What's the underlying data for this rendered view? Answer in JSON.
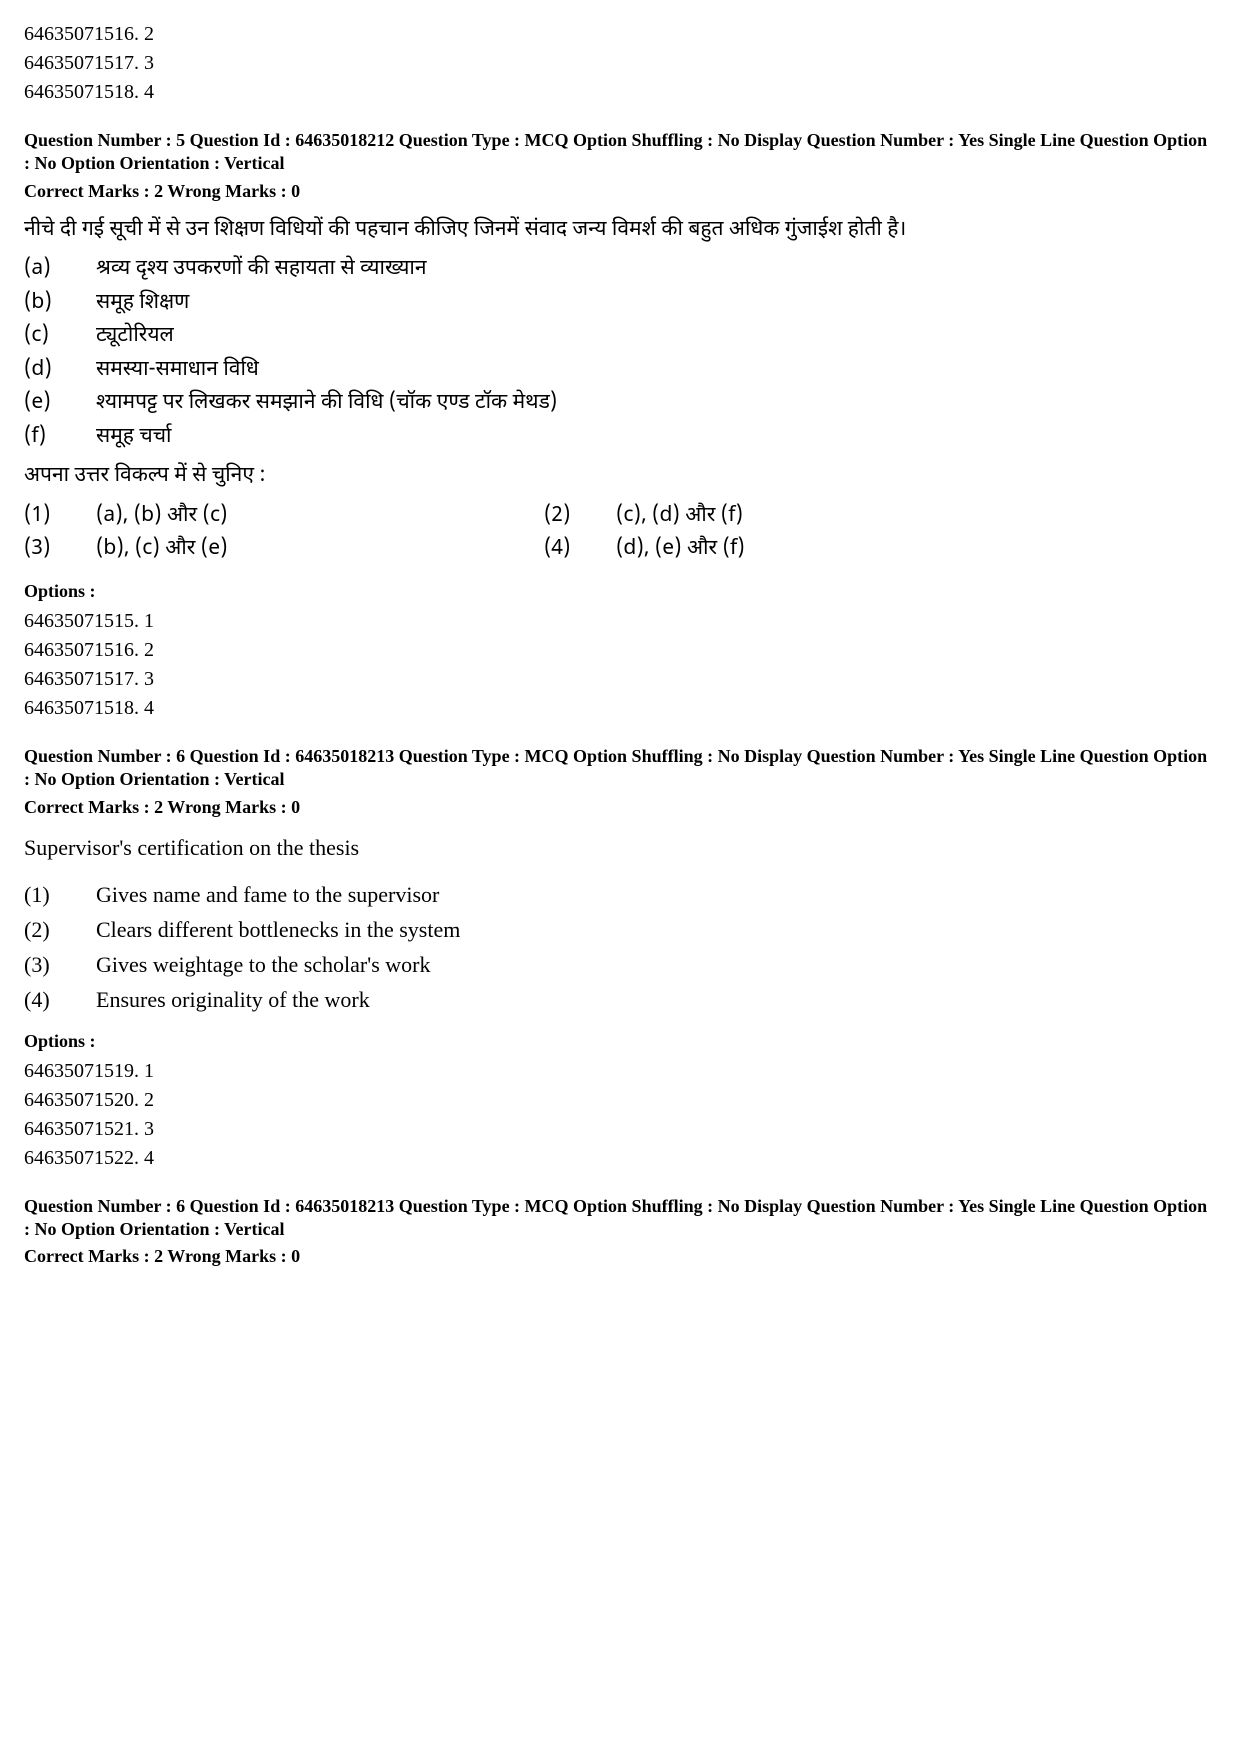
{
  "prev_options": [
    "64635071516. 2",
    "64635071517. 3",
    "64635071518. 4"
  ],
  "q5": {
    "meta": "Question Number : 5  Question Id : 64635018212  Question Type : MCQ  Option Shuffling : No  Display Question Number : Yes  Single Line Question Option : No  Option Orientation : Vertical",
    "marks": "Correct Marks : 2  Wrong Marks : 0",
    "text": "नीचे दी गई सूची में से उन शिक्षण विधियों की पहचान कीजिए जिनमें संवाद जन्य विमर्श की बहुत अधिक गुंजाईश होती है।",
    "items": [
      {
        "label": "(a)",
        "text": "श्रव्य दृश्य उपकरणों की सहायता से व्याख्यान"
      },
      {
        "label": "(b)",
        "text": "समूह शिक्षण"
      },
      {
        "label": "(c)",
        "text": "ट्यूटोरियल"
      },
      {
        "label": "(d)",
        "text": "समस्या-समाधान विधि"
      },
      {
        "label": "(e)",
        "text": "श्यामपट्ट पर लिखकर समझाने की विधि (चॉक एण्ड टॉक मेथड)"
      },
      {
        "label": "(f)",
        "text": "समूह चर्चा"
      }
    ],
    "choose_text": "अपना उत्तर विकल्प में से चुनिए :",
    "answers": [
      [
        {
          "label": "(1)",
          "text": "(a), (b) और (c)"
        },
        {
          "label": "(2)",
          "text": "(c), (d) और (f)"
        }
      ],
      [
        {
          "label": "(3)",
          "text": "(b), (c) और (e)"
        },
        {
          "label": "(4)",
          "text": "(d), (e) और (f)"
        }
      ]
    ],
    "options_heading": "Options :",
    "option_ids": [
      "64635071515. 1",
      "64635071516. 2",
      "64635071517. 3",
      "64635071518. 4"
    ]
  },
  "q6a": {
    "meta": "Question Number : 6  Question Id : 64635018213  Question Type : MCQ  Option Shuffling : No  Display Question Number : Yes  Single Line Question Option : No  Option Orientation : Vertical",
    "marks": "Correct Marks : 2  Wrong Marks : 0",
    "text": "Supervisor's certification on the thesis",
    "answers": [
      {
        "label": "(1)",
        "text": "Gives name and fame to the supervisor"
      },
      {
        "label": "(2)",
        "text": "Clears different bottlenecks in the system"
      },
      {
        "label": "(3)",
        "text": "Gives weightage to the scholar's work"
      },
      {
        "label": "(4)",
        "text": "Ensures originality of the work"
      }
    ],
    "options_heading": "Options :",
    "option_ids": [
      "64635071519. 1",
      "64635071520. 2",
      "64635071521. 3",
      "64635071522. 4"
    ]
  },
  "q6b": {
    "meta": "Question Number : 6  Question Id : 64635018213  Question Type : MCQ  Option Shuffling : No  Display Question Number : Yes  Single Line Question Option : No  Option Orientation : Vertical",
    "marks": "Correct Marks : 2  Wrong Marks : 0"
  }
}
